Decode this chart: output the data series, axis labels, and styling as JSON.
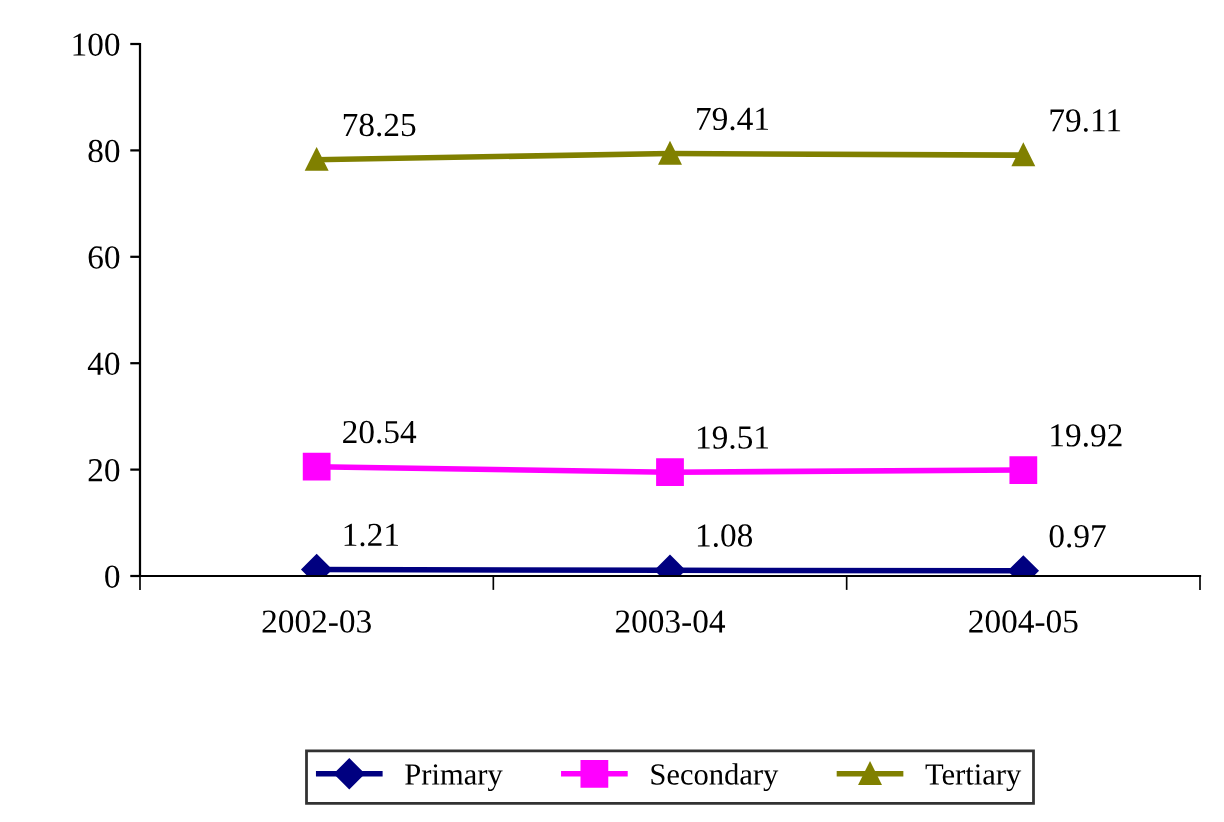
{
  "chart_data": {
    "type": "line",
    "categories": [
      "2002-03",
      "2003-04",
      "2004-05"
    ],
    "series": [
      {
        "name": "Primary",
        "color": "#000080",
        "marker": "diamond",
        "values": [
          1.21,
          1.08,
          0.97
        ]
      },
      {
        "name": "Secondary",
        "color": "#ff00ff",
        "marker": "square",
        "values": [
          20.54,
          19.51,
          19.92
        ]
      },
      {
        "name": "Tertiary",
        "color": "#808000",
        "marker": "triangle",
        "values": [
          78.25,
          79.41,
          79.11
        ]
      }
    ],
    "ylim": [
      0,
      100
    ],
    "yticks": [
      0,
      20,
      40,
      60,
      80,
      100
    ],
    "data_labels": true,
    "grid": false,
    "legend": "bottom",
    "line_style": "solid"
  }
}
